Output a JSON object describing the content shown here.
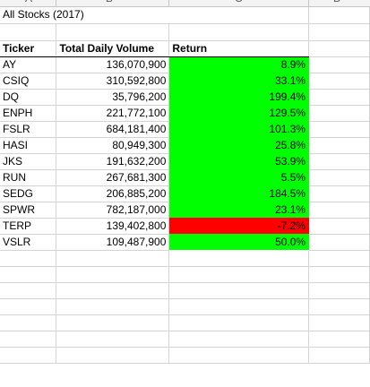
{
  "sheet": {
    "column_letters": [
      "A",
      "B",
      "C",
      "D"
    ],
    "title": "All Stocks (2017)",
    "headers": {
      "ticker": "Ticker",
      "volume": "Total Daily Volume",
      "return": "Return"
    },
    "rows": [
      {
        "ticker": "AY",
        "volume": "136,070,900",
        "return": "8.9%",
        "status": "positive"
      },
      {
        "ticker": "CSIQ",
        "volume": "310,592,800",
        "return": "33.1%",
        "status": "positive"
      },
      {
        "ticker": "DQ",
        "volume": "35,796,200",
        "return": "199.4%",
        "status": "positive"
      },
      {
        "ticker": "ENPH",
        "volume": "221,772,100",
        "return": "129.5%",
        "status": "positive"
      },
      {
        "ticker": "FSLR",
        "volume": "684,181,400",
        "return": "101.3%",
        "status": "positive"
      },
      {
        "ticker": "HASI",
        "volume": "80,949,300",
        "return": "25.8%",
        "status": "positive"
      },
      {
        "ticker": "JKS",
        "volume": "191,632,200",
        "return": "53.9%",
        "status": "positive"
      },
      {
        "ticker": "RUN",
        "volume": "267,681,300",
        "return": "5.5%",
        "status": "positive"
      },
      {
        "ticker": "SEDG",
        "volume": "206,885,200",
        "return": "184.5%",
        "status": "positive"
      },
      {
        "ticker": "SPWR",
        "volume": "782,187,000",
        "return": "23.1%",
        "status": "positive"
      },
      {
        "ticker": "TERP",
        "volume": "139,402,800",
        "return": "-7.2%",
        "status": "negative"
      },
      {
        "ticker": "VSLR",
        "volume": "109,487,900",
        "return": "50.0%",
        "status": "positive"
      }
    ],
    "colors": {
      "positive": "#00ff00",
      "negative": "#ff0000"
    }
  }
}
